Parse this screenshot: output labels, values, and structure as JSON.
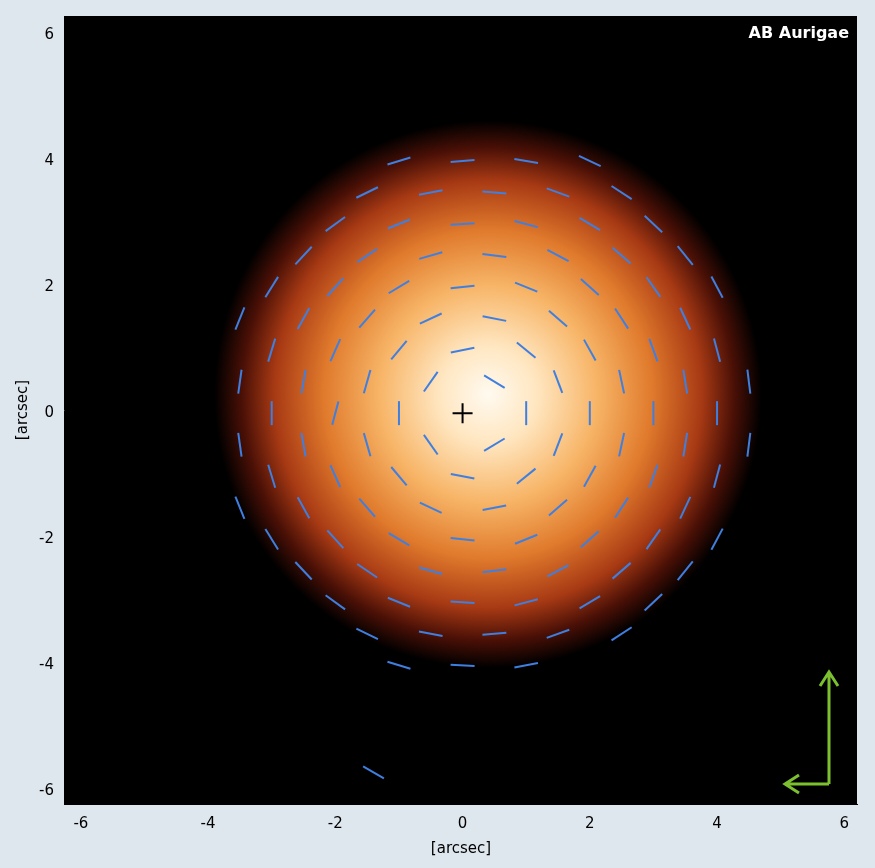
{
  "chart_data": {
    "type": "scatter",
    "title": "AB Aurigae",
    "x_label": "[arcsec]",
    "y_label": "[arcsec]",
    "xlim": [
      -6.25,
      6.2
    ],
    "ylim": [
      -6.2,
      6.3
    ],
    "xticks": [
      -6,
      -4,
      -2,
      0,
      2,
      4,
      6
    ],
    "yticks": [
      -6,
      -4,
      -2,
      0,
      2,
      4,
      6
    ],
    "grid": false,
    "nebula": {
      "x": 0.4,
      "y": 0.3,
      "radius": 4.3
    },
    "series": [
      {
        "type": "vector",
        "marker": "line",
        "color": "#3f7fe0",
        "x": [
          -1,
          0,
          1,
          2,
          -2,
          -1,
          0,
          1,
          2,
          3,
          -3,
          -2,
          -1,
          0,
          1,
          2,
          3,
          4,
          -3,
          -2,
          -1,
          0,
          1,
          2,
          3,
          4,
          -3,
          -2,
          -1,
          1,
          2,
          3,
          4,
          -3,
          -2,
          -1,
          0,
          1,
          2,
          3,
          4,
          -3,
          -2,
          -1,
          0,
          1,
          2,
          3,
          4,
          -2,
          -1,
          0,
          1,
          2,
          3,
          -1,
          0,
          1,
          -1.5,
          -0.5,
          0.5,
          1.5,
          2.5,
          -2.5,
          -1.5,
          -0.5,
          0.5,
          1.5,
          2.5,
          3.5,
          -3.5,
          -2.5,
          -1.5,
          -0.5,
          0.5,
          1.5,
          2.5,
          3.5,
          -3.5,
          -2.5,
          -1.5,
          -0.5,
          0.5,
          1.5,
          2.5,
          3.5,
          4.5,
          -3.5,
          -2.5,
          -1.5,
          -0.5,
          0.5,
          1.5,
          2.5,
          3.5,
          4.5,
          -3.5,
          -2.5,
          -1.5,
          -0.5,
          0.5,
          1.5,
          2.5,
          3.5,
          -2.5,
          -1.5,
          -0.5,
          0.5,
          1.5,
          2.5,
          3.5,
          -1.5,
          -0.5,
          0.5,
          1.5,
          2.5,
          -1.4
        ],
        "y": [
          4,
          4,
          4,
          4,
          3,
          3,
          3,
          3,
          3,
          3,
          2,
          2,
          2,
          2,
          2,
          2,
          2,
          2,
          1,
          1,
          1,
          1,
          1,
          1,
          1,
          1,
          0,
          0,
          0,
          0,
          0,
          0,
          0,
          -1,
          -1,
          -1,
          -1,
          -1,
          -1,
          -1,
          -1,
          -2,
          -2,
          -2,
          -2,
          -2,
          -2,
          -2,
          -2,
          -3,
          -3,
          -3,
          -3,
          -3,
          -3,
          -4,
          -4,
          -4,
          3.5,
          3.5,
          3.5,
          3.5,
          3.5,
          2.5,
          2.5,
          2.5,
          2.5,
          2.5,
          2.5,
          2.5,
          1.5,
          1.5,
          1.5,
          1.5,
          1.5,
          1.5,
          1.5,
          1.5,
          0.5,
          0.5,
          0.5,
          0.5,
          0.5,
          0.5,
          0.5,
          0.5,
          0.5,
          -0.5,
          -0.5,
          -0.5,
          -0.5,
          -0.5,
          -0.5,
          -0.5,
          -0.5,
          -0.5,
          -1.5,
          -1.5,
          -1.5,
          -1.5,
          -1.5,
          -1.5,
          -1.5,
          -1.5,
          -2.5,
          -2.5,
          -2.5,
          -2.5,
          -2.5,
          -2.5,
          -2.5,
          -3.5,
          -3.5,
          -3.5,
          -3.5,
          -3.5,
          -5.7
        ],
        "angle": [
          17,
          5,
          -10,
          -25,
          36,
          22,
          4,
          -15,
          -31,
          -43,
          58,
          48,
          31,
          6,
          -22,
          -42,
          -55,
          -62,
          73,
          66,
          50,
          11,
          -39,
          -61,
          -70,
          -75,
          90,
          75,
          90,
          90,
          90,
          90,
          90,
          -73,
          -66,
          -50,
          -11,
          39,
          61,
          70,
          75,
          -58,
          -48,
          -31,
          -6,
          22,
          42,
          55,
          62,
          -36,
          -22,
          -4,
          15,
          31,
          43,
          -17,
          -3,
          11,
          26,
          11,
          -5,
          -20,
          -33,
          47,
          34,
          16,
          -7,
          -28,
          -41,
          -51,
          68,
          61,
          49,
          25,
          -11,
          -41,
          -57,
          -65,
          82,
          80,
          74,
          55,
          -31,
          -69,
          -78,
          -81,
          -83,
          -82,
          -80,
          -74,
          -55,
          31,
          69,
          78,
          81,
          83,
          -68,
          -61,
          -49,
          -25,
          11,
          41,
          57,
          65,
          -47,
          -34,
          -16,
          7,
          28,
          41,
          51,
          -26,
          -11,
          5,
          20,
          33,
          -30
        ]
      },
      {
        "marker": "cross",
        "color": "#000000",
        "x": [
          0
        ],
        "y": [
          0
        ]
      }
    ]
  }
}
